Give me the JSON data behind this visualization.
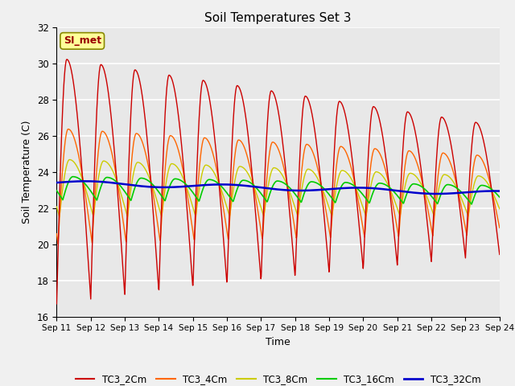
{
  "title": "Soil Temperatures Set 3",
  "xlabel": "Time",
  "ylabel": "Soil Temperature (C)",
  "ylim": [
    16,
    32
  ],
  "yticks": [
    16,
    18,
    20,
    22,
    24,
    26,
    28,
    30,
    32
  ],
  "plot_bg_color": "#e8e8e8",
  "fig_bg_color": "#f0f0f0",
  "annotation_text": "SI_met",
  "annotation_bg": "#ffff99",
  "annotation_border": "#888800",
  "annotation_text_color": "#990000",
  "legend_entries": [
    "TC3_2Cm",
    "TC3_4Cm",
    "TC3_8Cm",
    "TC3_16Cm",
    "TC3_32Cm"
  ],
  "line_colors": [
    "#cc0000",
    "#ff6600",
    "#cccc00",
    "#00cc00",
    "#0000cc"
  ],
  "x_tick_labels": [
    "Sep 11",
    "Sep 12",
    "Sep 13",
    "Sep 14",
    "Sep 15",
    "Sep 16",
    "Sep 17",
    "Sep 18",
    "Sep 19",
    "Sep 20",
    "Sep 21",
    "Sep 22",
    "Sep 23",
    "Sep 24"
  ],
  "n_points": 1300,
  "n_days": 13
}
